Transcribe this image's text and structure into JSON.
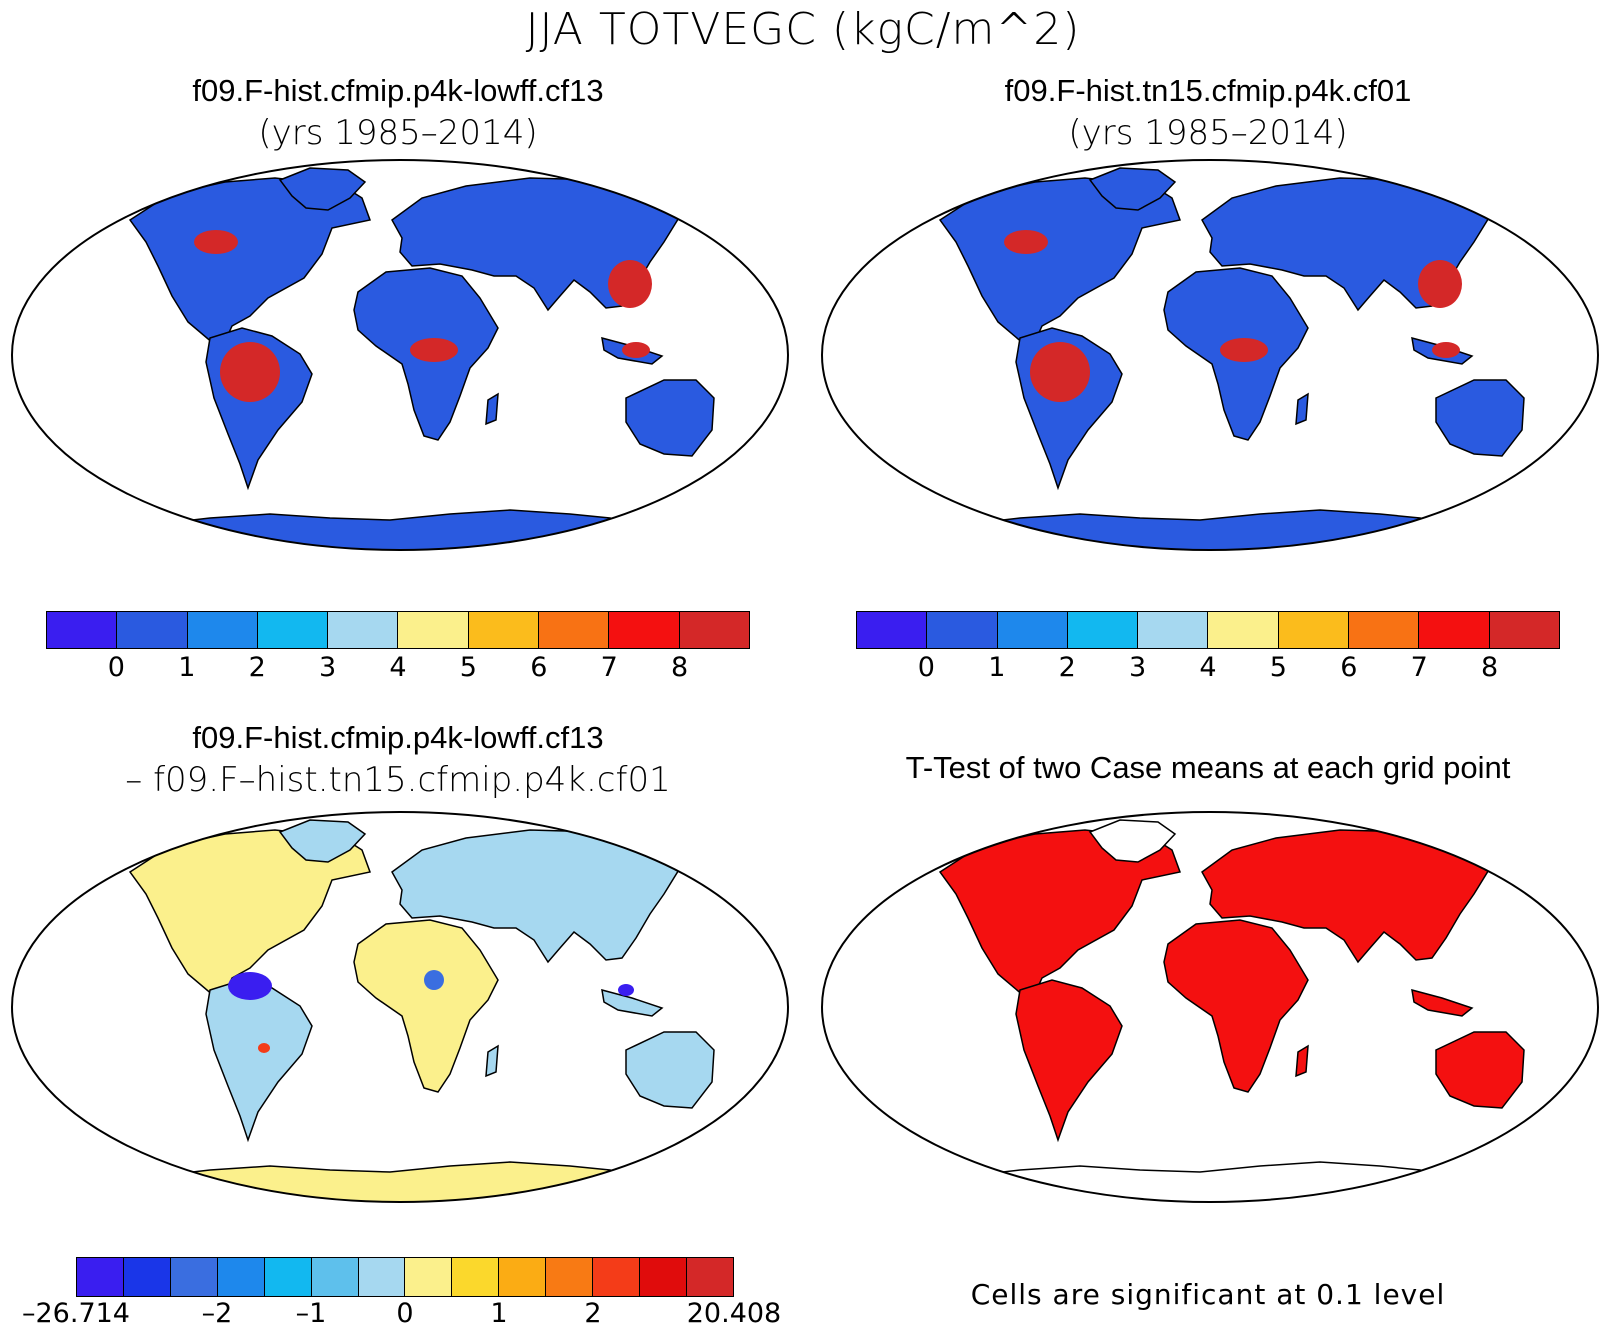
{
  "figure": {
    "title": "JJA TOTVEGC (kgC/m^2)"
  },
  "panels": [
    {
      "title": "f09.F-hist.cfmip.p4k-lowff.cf13",
      "subtitle": "(yrs 1985–2014)",
      "map_style": "field"
    },
    {
      "title": "f09.F-hist.tn15.cfmip.p4k.cf01",
      "subtitle": "(yrs 1985–2014)",
      "map_style": "field"
    },
    {
      "title": "f09.F-hist.cfmip.p4k-lowff.cf13",
      "subtitle": "– f09.F–hist.tn15.cfmip.p4k.cf01",
      "map_style": "difference"
    },
    {
      "title": "T-Test of two Case means at each grid point",
      "subtitle": "",
      "map_style": "significance"
    }
  ],
  "colorbars": {
    "field": {
      "colors": [
        "#3a1ef0",
        "#2a5ae0",
        "#1e88ec",
        "#12b8f0",
        "#a6d8f0",
        "#fbf08c",
        "#fbbc1c",
        "#f87214",
        "#f41010",
        "#d42828"
      ],
      "ticks": [
        "0",
        "1",
        "2",
        "3",
        "4",
        "5",
        "6",
        "7",
        "8"
      ]
    },
    "difference": {
      "colors": [
        "#3a1ef0",
        "#1a36e8",
        "#3a6ee0",
        "#1e88ec",
        "#12b8f0",
        "#5ec0ec",
        "#a6d8f0",
        "#fbf08c",
        "#fbd82c",
        "#fbac14",
        "#f87a14",
        "#f43c18",
        "#e00c0c",
        "#d42828"
      ],
      "ticks": [
        "–26.714",
        "–2",
        "–1",
        "0",
        "1",
        "2",
        "20.408"
      ]
    }
  },
  "significance_note": "Cells are significant at 0.1 level",
  "colors": {
    "land_field": "#2a5ae0",
    "high_veg": "#d42828",
    "diff_land": "#a6d8f0",
    "diff_pos": "#fbf08c",
    "signif": "#f41010",
    "outline": "#000000"
  }
}
